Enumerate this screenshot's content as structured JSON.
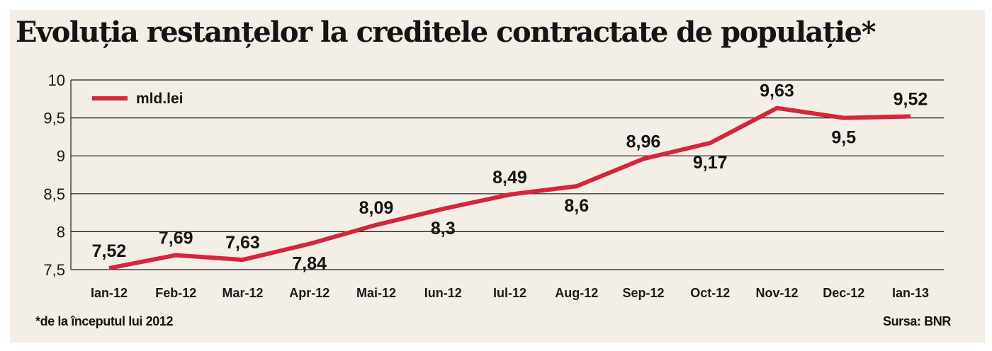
{
  "header": {
    "title": "Evoluția restanțelor la creditele contractate de populație*"
  },
  "footer": {
    "note": "*de la începutul lui 2012",
    "source": "Sursa: BNR"
  },
  "colors": {
    "line": "#d6253c",
    "background": "#f3eee6",
    "grid": "#1a1a1a",
    "text": "#141414"
  },
  "chart_data": {
    "type": "line",
    "title": "Evoluția restanțelor la creditele contractate de populație*",
    "xlabel": "",
    "ylabel": "",
    "ylim": [
      7.5,
      10
    ],
    "yticks": [
      7.5,
      8,
      8.5,
      9,
      9.5,
      10
    ],
    "ytick_labels": [
      "7,5",
      "8",
      "8,5",
      "9",
      "9,5",
      "10"
    ],
    "grid": "horizontal",
    "legend_position": "top-left",
    "categories": [
      "Ian-12",
      "Feb-12",
      "Mar-12",
      "Apr-12",
      "Mai-12",
      "Iun-12",
      "Iul-12",
      "Aug-12",
      "Sep-12",
      "Oct-12",
      "Nov-12",
      "Dec-12",
      "Ian-13"
    ],
    "series": [
      {
        "name": "mld.lei",
        "values": [
          7.52,
          7.69,
          7.63,
          7.84,
          8.09,
          8.3,
          8.49,
          8.6,
          8.96,
          9.17,
          9.63,
          9.5,
          9.52
        ],
        "data_labels": [
          "7,52",
          "7,69",
          "7,63",
          "7,84",
          "8,09",
          "8,3",
          "8,49",
          "8,6",
          "8,96",
          "9,17",
          "9,63",
          "9,5",
          "9,52"
        ],
        "label_position": [
          "above",
          "above",
          "above",
          "below",
          "above",
          "below",
          "above",
          "below",
          "above",
          "below",
          "above",
          "below",
          "above"
        ]
      }
    ]
  }
}
